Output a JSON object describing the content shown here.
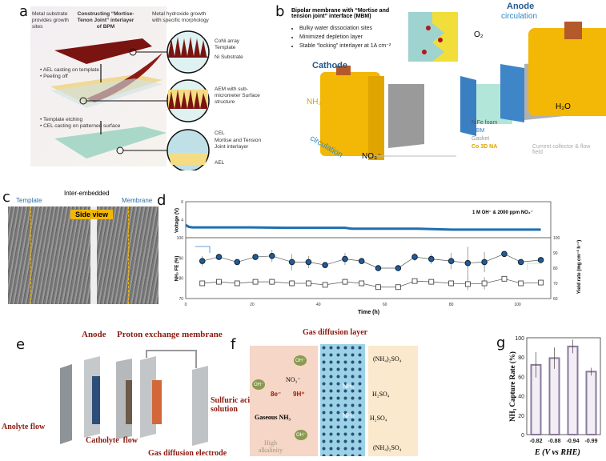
{
  "panel_labels": {
    "a": "a",
    "b": "b",
    "c": "c",
    "d": "d",
    "e": "e",
    "f": "f",
    "g": "g"
  },
  "panel_a": {
    "title": "Constructing “Mortise-Tenon Joint” interlayer of BPM",
    "left_note": "Metal substrate provides growth sites",
    "right_note": "Metal hydroxide growth with specific morphology",
    "step2": [
      "AEL casting on template",
      "Peeling off"
    ],
    "step3": [
      "Template etching",
      "CEL casting on patterned surface"
    ],
    "circle1": [
      "CoNi array Template",
      "Ni Substrate"
    ],
    "circle2": [
      "AEM with sub-micrometer Surface structure"
    ],
    "circle3": [
      "CEL",
      "Mortise and Tension Joint interlayer",
      "AEL"
    ]
  },
  "panel_b": {
    "title": "Bipolar membrane with “Mortise and tension joint” interface (MBM)",
    "bullets": [
      "Bulky water dissociation sites",
      "Minimized depletion layer",
      "Stable “locking” interlayer at 1A cm⁻²"
    ],
    "cathode": "Cathode",
    "anode": "Anode",
    "circulation": "circulation",
    "species": {
      "nh3": "NH₃",
      "no3": "NO₃⁻",
      "o2": "O₂",
      "h2o": "H₂O"
    },
    "legend": [
      "NiFe foam",
      "MBM",
      "Gasket",
      "Co 3D NA",
      "Current collector & flow field"
    ],
    "colors": {
      "cell": "#f2b705",
      "mbm": "#3a7fc1",
      "co3dna": "#d9a400"
    }
  },
  "panel_c": {
    "template": "Template",
    "membrane": "Membrane",
    "inter": "Inter-embedded",
    "side_view": "Side view"
  },
  "panel_e": {
    "labels": [
      "Anode",
      "Proton exchange membrane",
      "Anolyte flow",
      "Catholyte  flow",
      "Gas diffusion electrode",
      "Sulfuric acid solution"
    ]
  },
  "panel_f": {
    "gdl": "Gas diffusion layer",
    "oh": "OH⁻",
    "no3": "NO₃⁻",
    "e": "8e⁻",
    "h": "9H⁺",
    "gaseous": "Gaseous NH₃",
    "nh3": "NH₃",
    "alk": "High alkalinity",
    "h2so4": "H₂SO₄",
    "salt": "(NH₄)₂SO₄"
  },
  "chart_data": [
    {
      "type": "line",
      "panel": "d",
      "annotation": "1 M OH⁻ & 2000 ppm NO₃⁻",
      "xlabel": "Time (h)",
      "xticks": [
        "0",
        "20",
        "40",
        "60",
        "80",
        "100"
      ],
      "xlim": [
        0,
        110
      ],
      "voltage": {
        "ylabel": "Voltage (V)",
        "yticks": [
          "4",
          "6"
        ],
        "ylim": [
          2,
          6
        ],
        "x": [
          0,
          1,
          2,
          5,
          10,
          20,
          30,
          40,
          48,
          50,
          60,
          70,
          80,
          90,
          100,
          107
        ],
        "y": [
          3.4,
          3.2,
          3.15,
          3.15,
          3.15,
          3.15,
          3.1,
          3.1,
          3.1,
          3.0,
          3.0,
          3.0,
          2.9,
          2.9,
          2.9,
          2.9
        ],
        "color": "#1f6fb0"
      },
      "fe": {
        "ylabel": "NH₃ FE (%)",
        "yticks": [
          "70",
          "80",
          "90",
          "100"
        ],
        "ylim": [
          70,
          100
        ],
        "x": [
          5,
          10,
          15.5,
          21,
          26,
          32,
          37,
          42,
          48,
          53,
          58,
          64,
          69,
          74,
          80,
          85,
          90,
          96,
          101,
          107
        ],
        "y": [
          88.5,
          90.5,
          88,
          90.5,
          91,
          88,
          88,
          86.5,
          89.5,
          88.5,
          85,
          85,
          90.5,
          89.5,
          88.5,
          87.5,
          88,
          92,
          88,
          89
        ],
        "err": [
          2.5,
          1,
          1,
          1,
          3,
          4,
          3,
          1,
          3,
          1,
          1.5,
          1.5,
          2,
          2.5,
          4,
          8,
          5,
          1,
          1,
          1.5
        ],
        "color": "#1f5c99"
      },
      "yield": {
        "ylabel": "Yield rate (mg cm⁻² h⁻¹)",
        "yticks": [
          "60",
          "70",
          "80",
          "90",
          "100"
        ],
        "ylim": [
          60,
          100
        ],
        "y": [
          70,
          71,
          70,
          71,
          71,
          70,
          70,
          69,
          71,
          70,
          67.5,
          67.5,
          71.5,
          71,
          70,
          69.5,
          70,
          73,
          70,
          70.5
        ],
        "err": [
          1.5,
          1,
          1,
          1,
          2,
          2,
          2,
          1,
          2,
          1,
          1,
          1,
          1.5,
          1.5,
          2,
          4,
          4,
          1,
          1,
          1
        ]
      }
    },
    {
      "type": "bar",
      "panel": "g",
      "ylabel": "NH₃ Capture Rate (%)",
      "xlabel": "E (V vs RHE)",
      "categories": [
        "-0.82",
        "-0.88",
        "-0.94",
        "-0.99"
      ],
      "values": [
        72,
        79,
        91,
        65
      ],
      "errors": [
        13,
        11,
        7,
        4
      ],
      "yticks": [
        "0",
        "20",
        "40",
        "60",
        "80",
        "100"
      ],
      "ylim": [
        0,
        100
      ],
      "color": "#8a7a9a"
    }
  ]
}
